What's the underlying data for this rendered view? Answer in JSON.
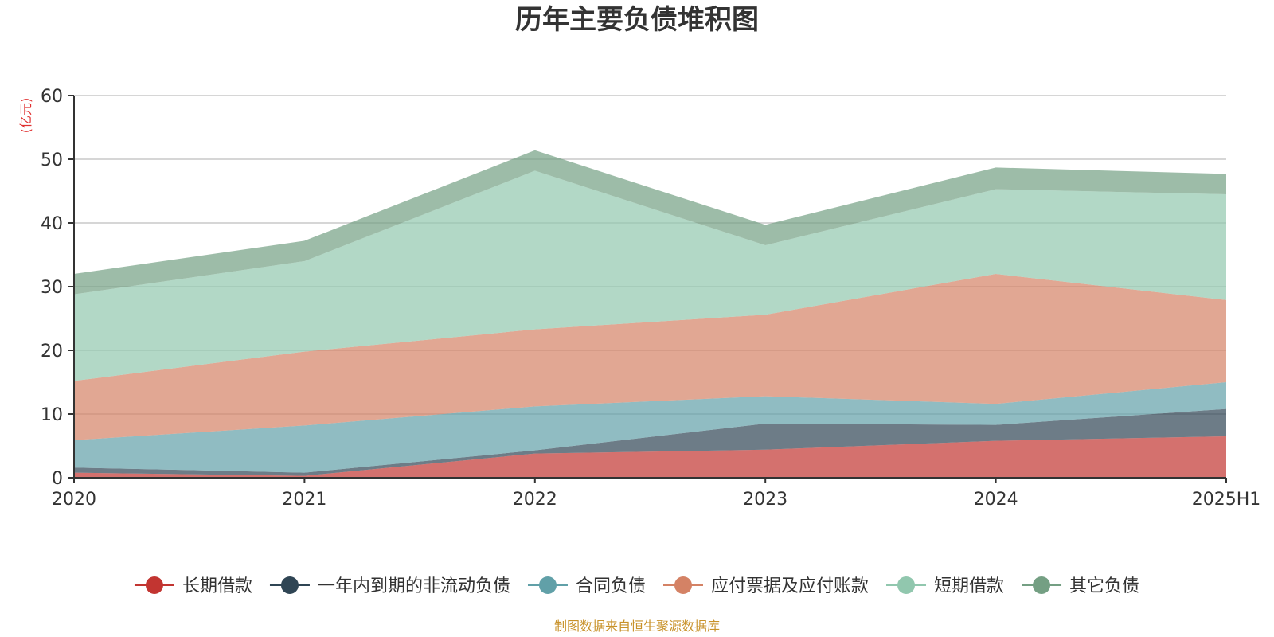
{
  "chart_data": {
    "type": "area",
    "stacked": true,
    "title": "历年主要负债堆积图",
    "unit_label": "(亿元)",
    "source_note": "制图数据来自恒生聚源数据库",
    "categories": [
      "2020",
      "2021",
      "2022",
      "2023",
      "2024",
      "2025H1"
    ],
    "ylim": [
      0,
      60
    ],
    "yticks": [
      0,
      10,
      20,
      30,
      40,
      50,
      60
    ],
    "grid": true,
    "legend_position": "bottom",
    "series": [
      {
        "name": "长期借款",
        "color": "#c23531",
        "values": [
          0.8,
          0.3,
          3.8,
          4.4,
          5.8,
          6.5
        ]
      },
      {
        "name": "一年内到期的非流动负债",
        "color": "#2f4554",
        "values": [
          0.8,
          0.5,
          0.5,
          4.1,
          2.5,
          4.3
        ]
      },
      {
        "name": "合同负债",
        "color": "#61a0a8",
        "values": [
          4.3,
          7.4,
          6.9,
          4.3,
          3.3,
          4.2
        ]
      },
      {
        "name": "应付票据及应付账款",
        "color": "#d48265",
        "values": [
          9.3,
          11.6,
          12.1,
          12.8,
          20.4,
          12.9
        ]
      },
      {
        "name": "短期借款",
        "color": "#91c7ae",
        "values": [
          13.6,
          14.2,
          24.9,
          10.9,
          13.3,
          16.6
        ]
      },
      {
        "name": "其它负债",
        "color": "#749f83",
        "values": [
          3.2,
          3.2,
          3.2,
          3.2,
          3.4,
          3.2
        ]
      }
    ]
  }
}
